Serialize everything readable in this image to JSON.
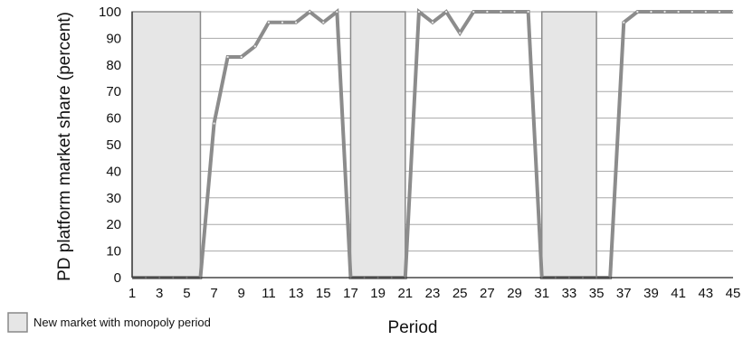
{
  "chart_data": {
    "type": "line",
    "xlabel": "Period",
    "ylabel": "PD platform market share (percent)",
    "xlim": [
      1,
      45
    ],
    "ylim": [
      0,
      100
    ],
    "y_ticks": [
      0,
      10,
      20,
      30,
      40,
      50,
      60,
      70,
      80,
      90,
      100
    ],
    "x_ticks": [
      1,
      3,
      5,
      7,
      9,
      11,
      13,
      15,
      17,
      19,
      21,
      23,
      25,
      27,
      29,
      31,
      33,
      35,
      37,
      39,
      41,
      43,
      45
    ],
    "grid": true,
    "series": [
      {
        "x": [
          1,
          2,
          3,
          4,
          5,
          6,
          7,
          8,
          9,
          10,
          11,
          12,
          13,
          14,
          15,
          16,
          17,
          18,
          19,
          20,
          21,
          22,
          23,
          24,
          25,
          26,
          27,
          28,
          29,
          30,
          31,
          32,
          33,
          34,
          35,
          36,
          37,
          38,
          39,
          40,
          41,
          42,
          43,
          44,
          45
        ],
        "values": [
          0,
          0,
          0,
          0,
          0,
          0,
          58,
          83,
          83,
          87,
          96,
          96,
          96,
          100,
          96,
          100,
          0,
          0,
          0,
          0,
          0,
          100,
          96,
          100,
          92,
          100,
          100,
          100,
          100,
          100,
          0,
          0,
          0,
          0,
          0,
          0,
          96,
          100,
          100,
          100,
          100,
          100,
          100,
          100,
          100
        ],
        "color": "#8c8c8c"
      }
    ],
    "shaded_regions": [
      {
        "x_start": 1,
        "x_end": 6,
        "y_top": 100
      },
      {
        "x_start": 17,
        "x_end": 21,
        "y_top": 100
      },
      {
        "x_start": 31,
        "x_end": 35,
        "y_top": 100
      }
    ],
    "legend": {
      "placement": "bottom-left",
      "label": "New market with monopoly period",
      "fill": "#e6e6e6"
    }
  }
}
